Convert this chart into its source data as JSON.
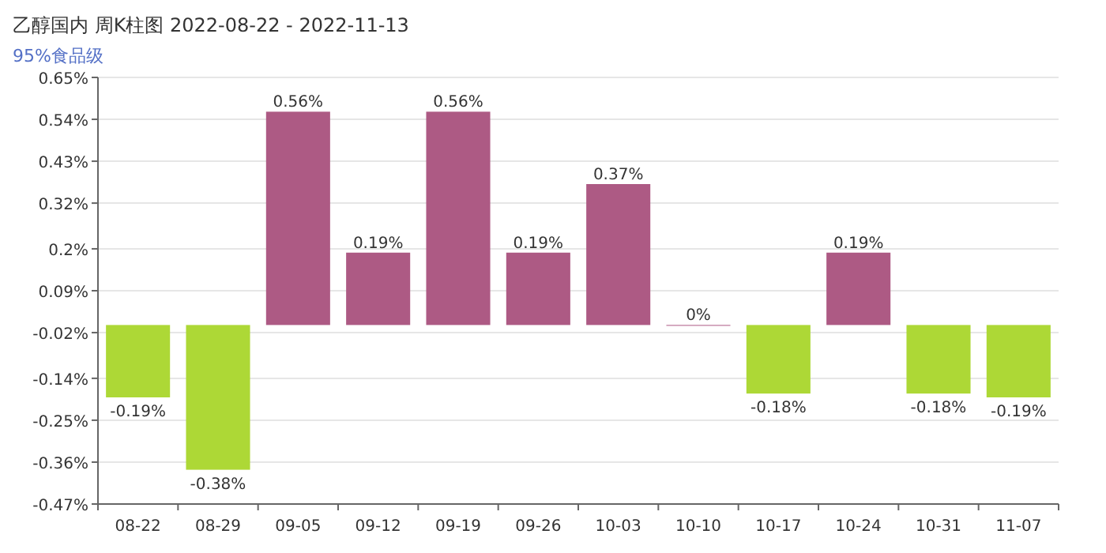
{
  "chart_data": {
    "type": "bar",
    "title": "乙醇国内 周K柱图 2022-08-22 - 2022-11-13",
    "subtitle": "95%食品级",
    "categories": [
      "08-22",
      "08-29",
      "09-05",
      "09-12",
      "09-19",
      "09-26",
      "10-03",
      "10-10",
      "10-17",
      "10-24",
      "10-31",
      "11-07"
    ],
    "values": [
      -0.19,
      -0.38,
      0.56,
      0.19,
      0.56,
      0.19,
      0.37,
      0,
      -0.18,
      0.19,
      -0.18,
      -0.19
    ],
    "colors": [
      "#add836",
      "#add836",
      "#ad5a84",
      "#ad5a84",
      "#ad5a84",
      "#ad5a84",
      "#ad5a84",
      "#ad5a84",
      "#add836",
      "#ad5a84",
      "#add836",
      "#add836"
    ],
    "value_labels": [
      "-0.19%",
      "-0.38%",
      "0.56%",
      "0.19%",
      "0.56%",
      "0.19%",
      "0.37%",
      "0%",
      "-0.18%",
      "0.19%",
      "-0.18%",
      "-0.19%"
    ],
    "ylim": [
      -0.47,
      0.65
    ],
    "yticks": [
      {
        "value": 0.65,
        "label": "0.65%"
      },
      {
        "value": 0.54,
        "label": "0.54%"
      },
      {
        "value": 0.43,
        "label": "0.43%"
      },
      {
        "value": 0.32,
        "label": "0.32%"
      },
      {
        "value": 0.2,
        "label": "0.2%"
      },
      {
        "value": 0.09,
        "label": "0.09%"
      },
      {
        "value": -0.02,
        "label": "-0.02%"
      },
      {
        "value": -0.14,
        "label": "-0.14%"
      },
      {
        "value": -0.25,
        "label": "-0.25%"
      },
      {
        "value": -0.36,
        "label": "-0.36%"
      },
      {
        "value": -0.47,
        "label": "-0.47%"
      }
    ],
    "grid": "y"
  }
}
